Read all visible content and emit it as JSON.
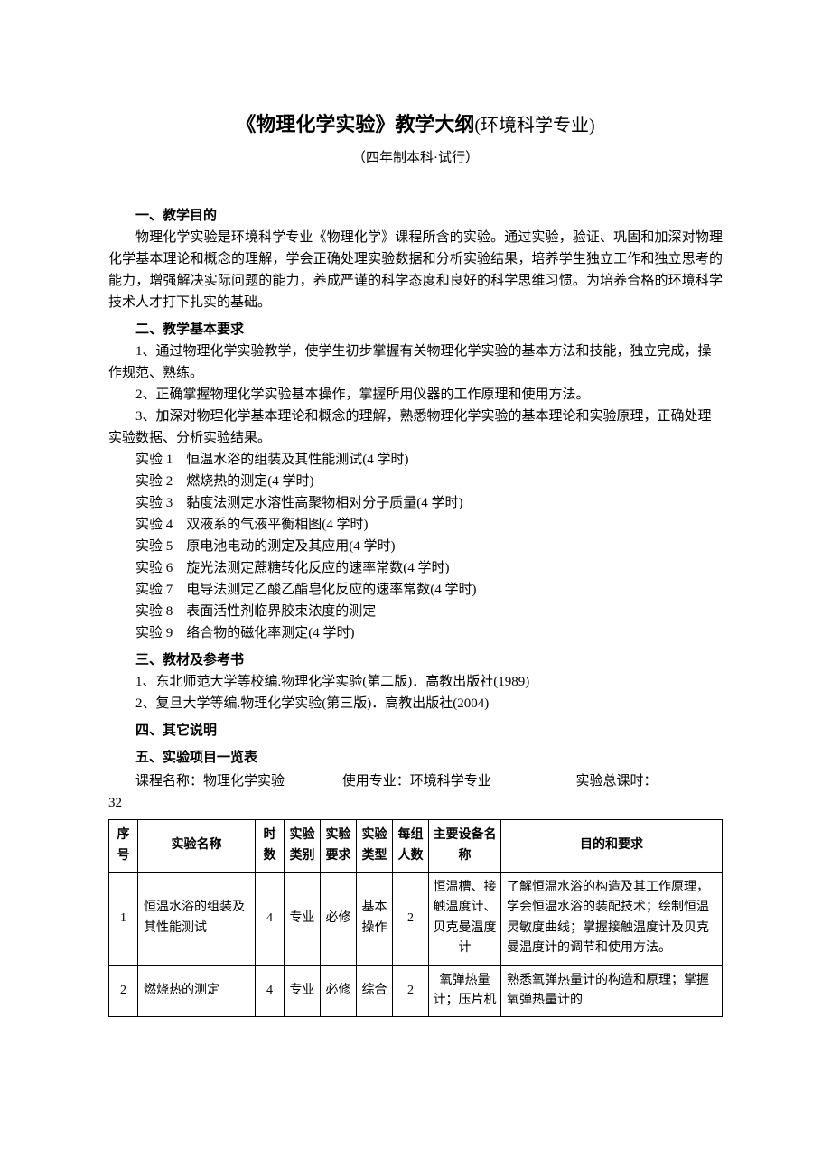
{
  "title": {
    "main": "《物理化学实验》教学大纲",
    "suffix": "(环境科学专业)",
    "subtitle": "（四年制本科·试行）"
  },
  "sections": {
    "s1_heading": "一、教学目的",
    "s1_body": "物理化学实验是环境科学专业《物理化学》课程所含的实验。通过实验，验证、巩固和加深对物理化学基本理论和概念的理解，学会正确处理实验数据和分析实验结果，培养学生独立工作和独立思考的能力，增强解决实际问题的能力，养成严谨的科学态度和良好的科学思维习惯。为培养合格的环境科学技术人才打下扎实的基础。",
    "s2_heading": "二、教学基本要求",
    "s2_items": [
      "1、通过物理化学实验教学，使学生初步掌握有关物理化学实验的基本方法和技能，独立完成，操作规范、熟练。",
      "2、正确掌握物理化学实验基本操作，掌握所用仪器的工作原理和使用方法。",
      "3、加深对物理化学基本理论和概念的理解，熟悉物理化学实验的基本理论和实验原理，正确处理实验数据、分析实验结果。"
    ],
    "experiments": [
      "实验 1　恒温水浴的组装及其性能测试(4 学时)",
      "实验 2　燃烧热的测定(4 学时)",
      "实验 3　黏度法测定水溶性高聚物相对分子质量(4 学时)",
      "实验 4　双液系的气液平衡相图(4 学时)",
      "实验 5　原电池电动的测定及其应用(4 学时)",
      "实验 6　旋光法测定蔗糖转化反应的速率常数(4 学时)",
      "实验 7　电导法测定乙酸乙酯皂化反应的速率常数(4 学时)",
      "实验 8　表面活性剂临界胶束浓度的测定",
      "实验 9　络合物的磁化率测定(4 学时)"
    ],
    "s3_heading": "三、教材及参考书",
    "s3_items": [
      "1、东北师范大学等校编.物理化学实验(第二版)．高教出版社(1989)",
      "2、复旦大学等编.物理化学实验(第三版)．高教出版社(2004)"
    ],
    "s4_heading": "四、其它说明",
    "s5_heading": "五、实验项目一览表",
    "meta": {
      "course": "课程名称：物理化学实验",
      "major": "使用专业：环境科学专业",
      "total_label": "实验总课时：",
      "total_value": "32"
    }
  },
  "table": {
    "headers": [
      "序号",
      "实验名称",
      "时数",
      "实验类别",
      "实验要求",
      "实验类型",
      "每组人数",
      "主要设备名称",
      "目的和要求"
    ],
    "rows": [
      {
        "num": "1",
        "name": "恒温水浴的组装及其性能测试",
        "hours": "4",
        "cat": "专业",
        "req": "必修",
        "type": "基本操作",
        "group": "2",
        "equip": "恒温槽、接触温度计、贝克曼温度计",
        "purpose": "了解恒温水浴的构造及其工作原理，学会恒温水浴的装配技术；绘制恒温灵敏度曲线；掌握接触温度计及贝克曼温度计的调节和使用方法。"
      },
      {
        "num": "2",
        "name": "燃烧热的测定",
        "hours": "4",
        "cat": "专业",
        "req": "必修",
        "type": "综合",
        "group": "2",
        "equip": "氧弹热量计；压片机",
        "purpose": "熟悉氧弹热量计的构造和原理；掌握氧弹热量计的"
      }
    ]
  }
}
